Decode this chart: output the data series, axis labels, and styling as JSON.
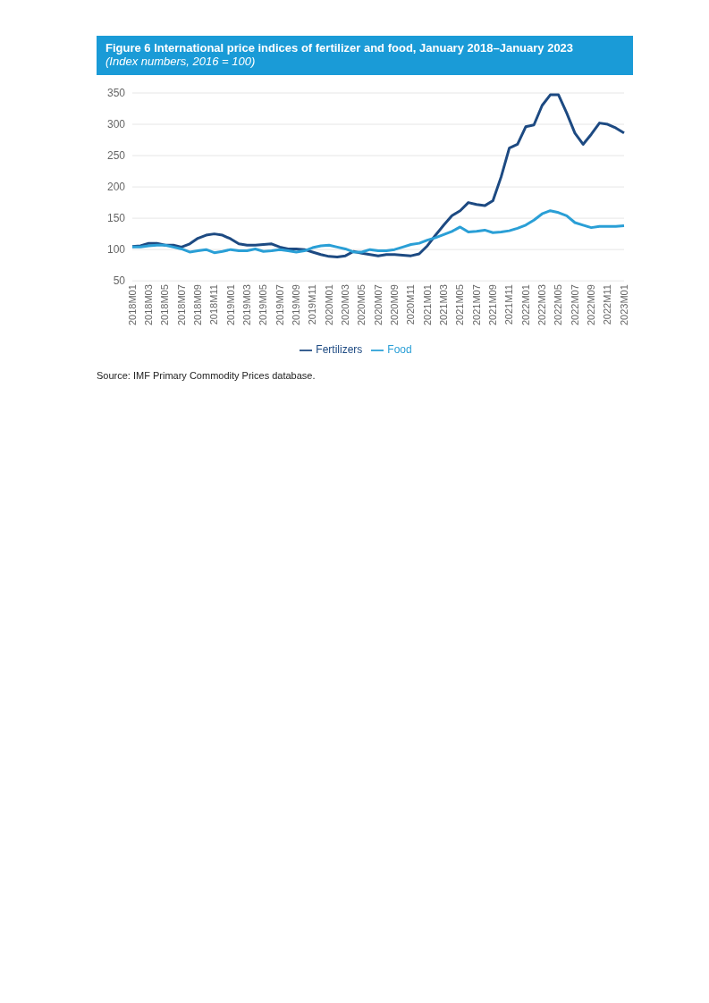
{
  "chart_data": {
    "type": "line",
    "title": "Figure 6  International price indices of fertilizer and food, January 2018–January 2023",
    "subtitle": "(Index numbers, 2016 = 100)",
    "categories": [
      "2018M01",
      null,
      "2018M03",
      null,
      "2018M05",
      null,
      "2018M07",
      null,
      "2018M09",
      null,
      "2018M11",
      null,
      "2019M01",
      null,
      "2019M03",
      null,
      "2019M05",
      null,
      "2019M07",
      null,
      "2019M09",
      null,
      "2019M11",
      null,
      "2020M01",
      null,
      "2020M03",
      null,
      "2020M05",
      null,
      "2020M07",
      null,
      "2020M09",
      null,
      "2020M11",
      null,
      "2021M01",
      null,
      "2021M03",
      null,
      "2021M05",
      null,
      "2021M07",
      null,
      "2021M09",
      null,
      "2021M11",
      null,
      "2022M01",
      null,
      "2022M03",
      null,
      "2022M05",
      null,
      "2022M07",
      null,
      "2022M09",
      null,
      "2022M11",
      null,
      "2023M01"
    ],
    "series": [
      {
        "name": "Fertilizers",
        "color": "#1d4a82",
        "values": [
          105,
          106,
          110,
          110,
          107,
          107,
          104,
          109,
          118,
          123,
          125,
          123,
          117,
          109,
          107,
          107,
          108,
          109,
          104,
          101,
          101,
          100,
          96,
          92,
          89,
          88,
          90,
          97,
          94,
          92,
          90,
          92,
          92,
          91,
          90,
          93,
          106,
          123,
          139,
          154,
          162,
          175,
          172,
          170,
          178,
          216,
          262,
          268,
          296,
          299,
          330,
          347,
          347,
          318,
          286,
          268,
          284,
          302,
          300,
          294,
          286
        ]
      },
      {
        "name": "Food",
        "color": "#2a9fd6",
        "values": [
          104,
          104,
          106,
          107,
          107,
          104,
          101,
          96,
          98,
          100,
          95,
          97,
          100,
          98,
          98,
          101,
          97,
          98,
          100,
          98,
          96,
          98,
          103,
          106,
          107,
          104,
          101,
          96,
          96,
          100,
          98,
          98,
          100,
          104,
          108,
          110,
          115,
          119,
          124,
          129,
          136,
          128,
          129,
          131,
          127,
          128,
          130,
          134,
          139,
          147,
          157,
          162,
          159,
          154,
          143,
          139,
          135,
          137,
          137,
          137,
          138
        ]
      }
    ],
    "ylim": [
      50,
      350
    ],
    "yticks": [
      50,
      100,
      150,
      200,
      250,
      300,
      350
    ],
    "grid": "y",
    "legend": "bottom",
    "marker": "none",
    "line_style": "solid",
    "annotations": [
      "Source: IMF Primary Commodity Prices database."
    ]
  }
}
